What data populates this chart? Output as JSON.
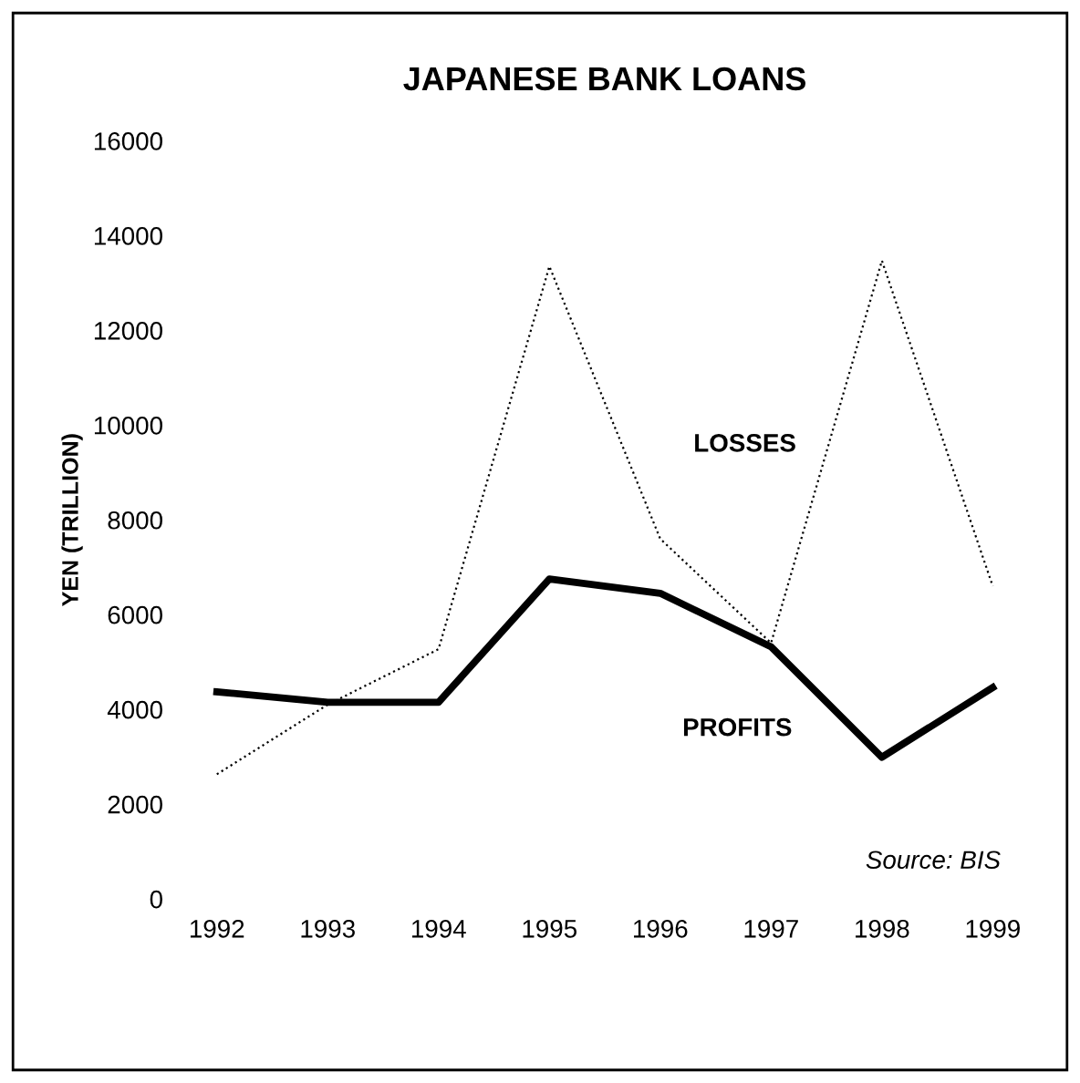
{
  "chart_data": {
    "type": "line",
    "title": "JAPANESE BANK LOANS",
    "ylabel": "YEN (TRILLION)",
    "categories": [
      "1992",
      "1993",
      "1994",
      "1995",
      "1996",
      "1997",
      "1998",
      "1999"
    ],
    "series": [
      {
        "name": "LOSSES",
        "color": "#000000",
        "line_style": "dotted",
        "values": [
          2630,
          4100,
          5270,
          13350,
          7600,
          5400,
          13470,
          6600
        ]
      },
      {
        "name": "PROFITS",
        "color": "#000000",
        "line_style": "solid",
        "values": [
          4370,
          4150,
          4150,
          6750,
          6450,
          5320,
          2990,
          4460
        ]
      }
    ],
    "ylim": [
      0,
      16000
    ],
    "yticks": [
      0,
      2000,
      4000,
      6000,
      8000,
      10000,
      12000,
      14000,
      16000
    ],
    "grid": false,
    "legend": false,
    "annotations": [
      "Source: BIS"
    ]
  }
}
